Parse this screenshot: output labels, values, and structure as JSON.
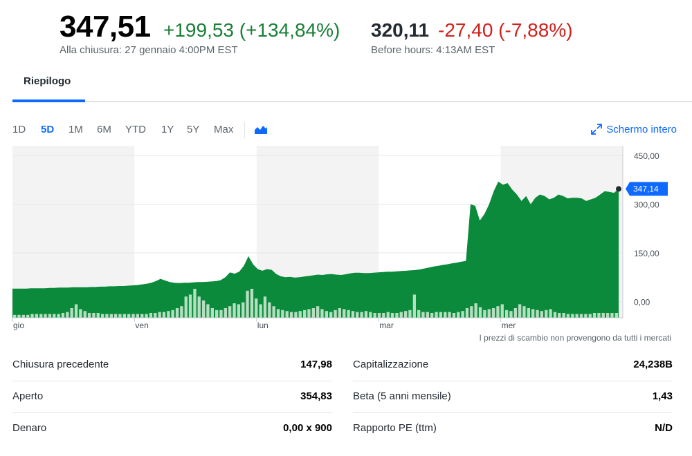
{
  "quote": {
    "price": "347,51",
    "change": "+199,53 (+134,84%)",
    "close_note": "Alla chiusura: 27 gennaio 4:00PM EST",
    "pre_price": "320,11",
    "pre_change": "-27,40 (-7,88%)",
    "pre_note": "Before hours: 4:13AM EST",
    "colors": {
      "up": "#1a7f37",
      "down": "#d0211c"
    }
  },
  "tabs": [
    {
      "label": "Riepilogo",
      "active": true
    }
  ],
  "range": {
    "buttons": [
      "1D",
      "5D",
      "1M",
      "6M",
      "YTD",
      "1Y",
      "5Y",
      "Max"
    ],
    "active": "5D",
    "chart_type_icon": "area-chart-icon",
    "fullscreen_label": "Schermo intero",
    "fullscreen_icon": "expand-icon"
  },
  "chart_data": {
    "type": "area",
    "x_labels": [
      "gio",
      "ven",
      "lun",
      "mar",
      "mer"
    ],
    "y_ticks": [
      "450,00",
      "300,00",
      "150,00",
      "0,00"
    ],
    "ylim": [
      -50,
      480
    ],
    "current_label": "347,14",
    "current_value": 347.14,
    "area_color": "#0a8a3a",
    "volume_color": "#b5dfc0",
    "price_series": [
      40,
      40,
      40,
      40,
      41,
      41,
      41,
      41,
      42,
      42,
      43,
      43,
      43,
      44,
      44,
      44,
      44,
      45,
      45,
      46,
      46,
      47,
      47,
      48,
      48,
      49,
      50,
      51,
      53,
      55,
      58,
      63,
      70,
      65,
      60,
      58,
      57,
      58,
      58,
      59,
      60,
      60,
      61,
      62,
      63,
      66,
      75,
      90,
      86,
      92,
      110,
      140,
      115,
      100,
      95,
      100,
      98,
      85,
      78,
      75,
      76,
      74,
      75,
      77,
      79,
      81,
      83,
      82,
      84,
      85,
      83,
      82,
      84,
      87,
      89,
      89,
      88,
      88,
      89,
      90,
      91,
      92,
      92,
      93,
      94,
      95,
      96,
      97,
      99,
      102,
      105,
      108,
      110,
      113,
      115,
      118,
      120,
      123,
      125,
      300,
      295,
      250,
      270,
      300,
      340,
      370,
      360,
      365,
      345,
      330,
      310,
      325,
      300,
      320,
      330,
      325,
      315,
      320,
      330,
      325,
      318,
      320,
      320,
      318,
      310,
      315,
      320,
      330,
      340,
      338,
      335,
      347
    ],
    "volume_series": [
      3,
      3,
      3,
      3,
      3,
      3,
      3,
      3,
      3,
      3,
      3,
      3,
      3,
      3,
      3,
      3,
      3,
      3,
      3,
      3,
      3,
      4,
      3,
      3,
      3,
      3,
      3,
      3,
      3,
      3,
      3,
      3,
      3,
      3,
      3,
      3,
      3,
      3,
      3,
      3,
      3,
      3,
      3,
      3,
      3,
      3,
      3,
      3,
      3,
      3,
      3,
      3,
      3,
      3,
      3,
      3,
      3,
      3,
      3,
      3,
      3,
      3,
      3,
      3,
      3,
      3,
      3,
      3,
      3,
      3,
      3,
      3,
      3,
      3,
      3,
      3,
      3,
      3,
      3,
      3,
      3,
      3,
      3,
      3,
      3,
      3,
      3,
      3,
      3,
      3,
      3,
      3,
      3,
      3,
      3,
      3,
      3,
      3,
      3,
      3,
      3,
      3,
      3,
      3,
      3,
      3,
      3,
      3,
      3,
      3,
      3,
      3,
      3,
      3,
      3,
      3,
      3,
      3,
      3,
      3,
      3,
      3,
      3,
      3,
      3,
      3,
      3,
      3,
      3,
      3,
      3,
      3
    ],
    "volume_heights": [
      3,
      3,
      3,
      3,
      4,
      4,
      4,
      4,
      4,
      4,
      4,
      5,
      6,
      10,
      14,
      9,
      7,
      5,
      5,
      5,
      4,
      4,
      4,
      4,
      4,
      4,
      4,
      4,
      4,
      4,
      4,
      5,
      5,
      6,
      6,
      7,
      8,
      10,
      12,
      22,
      24,
      30,
      22,
      18,
      14,
      10,
      8,
      8,
      10,
      12,
      15,
      14,
      16,
      28,
      30,
      20,
      14,
      22,
      16,
      12,
      9,
      8,
      7,
      6,
      6,
      7,
      8,
      9,
      10,
      12,
      9,
      7,
      6,
      8,
      10,
      9,
      8,
      7,
      6,
      6,
      7,
      6,
      5,
      5,
      5,
      6,
      5,
      5,
      6,
      7,
      8,
      24,
      8,
      6,
      6,
      5,
      6,
      6,
      6,
      6,
      5,
      6,
      7,
      10,
      12,
      15,
      11,
      8,
      9,
      10,
      12,
      14,
      8,
      7,
      10,
      14,
      12,
      10,
      9,
      8,
      7,
      8,
      9,
      6,
      5,
      5,
      4,
      4,
      4,
      4,
      4,
      4,
      5,
      5,
      5,
      5,
      5,
      5
    ],
    "xlabel": "",
    "ylabel": ""
  },
  "chart_note": "I prezzi di scambio non provengono da tutti i mercati",
  "stats": {
    "left": [
      {
        "label": "Chiusura precedente",
        "value": "147,98"
      },
      {
        "label": "Aperto",
        "value": "354,83"
      },
      {
        "label": "Denaro",
        "value": "0,00 x 900"
      }
    ],
    "right": [
      {
        "label": "Capitalizzazione",
        "value": "24,238B"
      },
      {
        "label": "Beta (5 anni mensile)",
        "value": "1,43"
      },
      {
        "label": "Rapporto PE (ttm)",
        "value": "N/D"
      }
    ]
  }
}
